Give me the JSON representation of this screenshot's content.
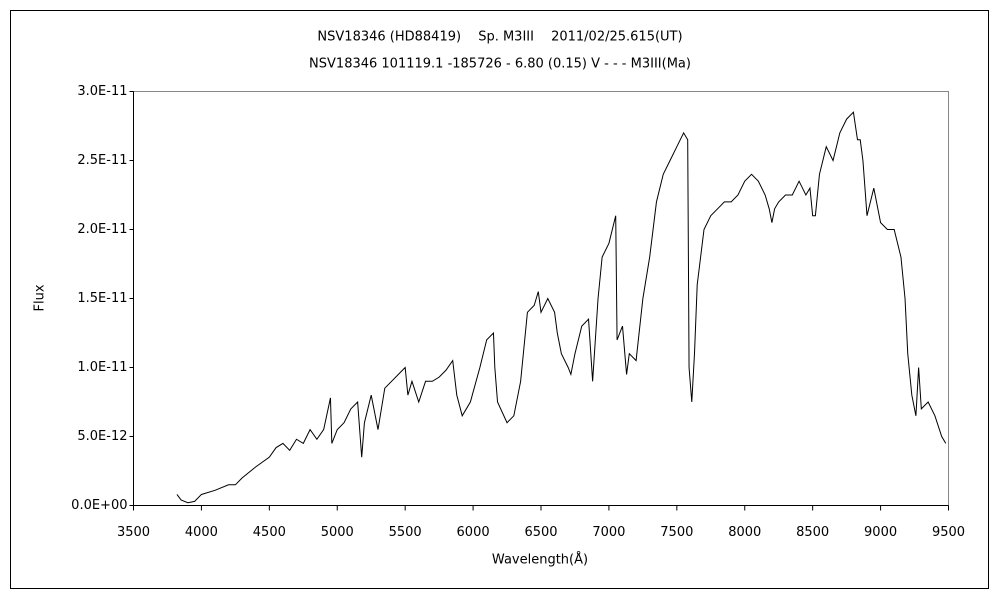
{
  "chart_data": {
    "type": "line",
    "title": "NSV18346 (HD88419)　 Sp. M3III　 2011/02/25.615(UT)",
    "subtitle": "NSV18346 101119.1 -185726 - 6.80 (0.15) V - - - M3III(Ma)",
    "x_label": "Wavelength(Å)",
    "y_label": "Flux",
    "color": "#000000",
    "xlim": [
      3500,
      9500
    ],
    "xticks": [
      3500,
      4000,
      4500,
      5000,
      5500,
      6000,
      6500,
      7000,
      7500,
      8000,
      8500,
      9000,
      9500
    ],
    "ylim": [
      0,
      3e-11
    ],
    "yticks": [
      {
        "value": 0,
        "label": "0.0E+00"
      },
      {
        "value": 5e-12,
        "label": "5.0E-12"
      },
      {
        "value": 1e-11,
        "label": "1.0E-11"
      },
      {
        "value": 1.5e-11,
        "label": "1.5E-11"
      },
      {
        "value": 2e-11,
        "label": "2.0E-11"
      },
      {
        "value": 2.5e-11,
        "label": "2.5E-11"
      },
      {
        "value": 3e-11,
        "label": "3.0E-11"
      }
    ],
    "x": [
      3820,
      3850,
      3900,
      3950,
      4000,
      4100,
      4200,
      4250,
      4300,
      4400,
      4500,
      4550,
      4600,
      4650,
      4700,
      4750,
      4800,
      4850,
      4900,
      4950,
      4960,
      5000,
      5050,
      5100,
      5150,
      5180,
      5200,
      5250,
      5300,
      5350,
      5400,
      5450,
      5500,
      5520,
      5550,
      5600,
      5650,
      5700,
      5750,
      5800,
      5850,
      5880,
      5920,
      5980,
      6050,
      6100,
      6150,
      6160,
      6180,
      6250,
      6300,
      6350,
      6400,
      6450,
      6480,
      6500,
      6550,
      6600,
      6620,
      6650,
      6700,
      6720,
      6750,
      6800,
      6850,
      6880,
      6920,
      6950,
      7000,
      7050,
      7060,
      7100,
      7130,
      7150,
      7200,
      7250,
      7300,
      7350,
      7400,
      7450,
      7500,
      7550,
      7580,
      7590,
      7610,
      7630,
      7650,
      7700,
      7750,
      7800,
      7850,
      7900,
      7950,
      8000,
      8050,
      8100,
      8150,
      8180,
      8200,
      8220,
      8250,
      8300,
      8350,
      8400,
      8450,
      8480,
      8500,
      8520,
      8550,
      8600,
      8650,
      8700,
      8750,
      8800,
      8830,
      8850,
      8870,
      8900,
      8950,
      9000,
      9050,
      9100,
      9150,
      9180,
      9200,
      9230,
      9260,
      9280,
      9300,
      9350,
      9400,
      9450,
      9480
    ],
    "values": [
      8e-13,
      4e-13,
      2e-13,
      3e-13,
      8e-13,
      1.1e-12,
      1.5e-12,
      1.5e-12,
      2e-12,
      2.8e-12,
      3.5e-12,
      4.2e-12,
      4.5e-12,
      4e-12,
      4.8e-12,
      4.5e-12,
      5.5e-12,
      4.8e-12,
      5.5e-12,
      7.8e-12,
      4.5e-12,
      5.5e-12,
      6e-12,
      7e-12,
      7.5e-12,
      3.5e-12,
      6e-12,
      8e-12,
      5.5e-12,
      8.5e-12,
      9e-12,
      9.5e-12,
      1e-11,
      8e-12,
      9e-12,
      7.5e-12,
      9e-12,
      9e-12,
      9.3e-12,
      9.8e-12,
      1.05e-11,
      8e-12,
      6.5e-12,
      7.5e-12,
      1e-11,
      1.2e-11,
      1.25e-11,
      1e-11,
      7.5e-12,
      6e-12,
      6.5e-12,
      9e-12,
      1.4e-11,
      1.45e-11,
      1.55e-11,
      1.4e-11,
      1.5e-11,
      1.4e-11,
      1.25e-11,
      1.1e-11,
      1e-11,
      9.5e-12,
      1.1e-11,
      1.3e-11,
      1.35e-11,
      9e-12,
      1.5e-11,
      1.8e-11,
      1.9e-11,
      2.1e-11,
      1.2e-11,
      1.3e-11,
      9.5e-12,
      1.1e-11,
      1.05e-11,
      1.5e-11,
      1.8e-11,
      2.2e-11,
      2.4e-11,
      2.5e-11,
      2.6e-11,
      2.7e-11,
      2.65e-11,
      1e-11,
      7.5e-12,
      1.1e-11,
      1.6e-11,
      2e-11,
      2.1e-11,
      2.15e-11,
      2.2e-11,
      2.2e-11,
      2.25e-11,
      2.35e-11,
      2.4e-11,
      2.35e-11,
      2.25e-11,
      2.15e-11,
      2.05e-11,
      2.15e-11,
      2.2e-11,
      2.25e-11,
      2.25e-11,
      2.35e-11,
      2.25e-11,
      2.3e-11,
      2.1e-11,
      2.1e-11,
      2.4e-11,
      2.6e-11,
      2.5e-11,
      2.7e-11,
      2.8e-11,
      2.85e-11,
      2.65e-11,
      2.65e-11,
      2.5e-11,
      2.1e-11,
      2.3e-11,
      2.05e-11,
      2e-11,
      2e-11,
      1.8e-11,
      1.5e-11,
      1.1e-11,
      8e-12,
      6.5e-12,
      1e-11,
      7e-12,
      7.5e-12,
      6.5e-12,
      5e-12,
      4.5e-12
    ]
  }
}
